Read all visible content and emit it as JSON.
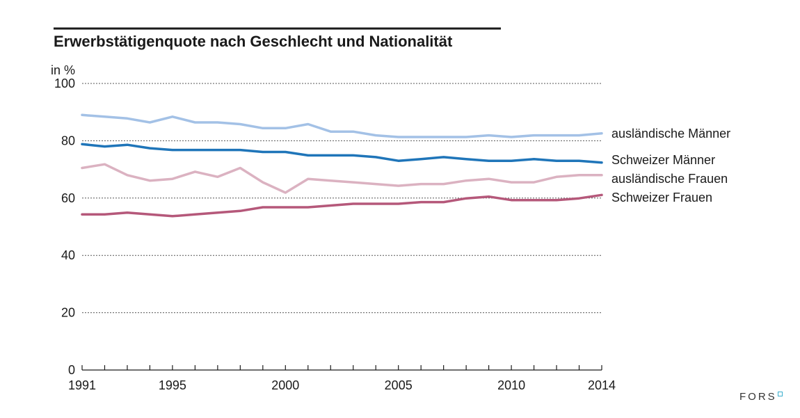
{
  "chart_data": {
    "type": "line",
    "title": "Erwerbstätigenquote nach Geschlecht und Nationalität",
    "ylabel": "in %",
    "xlabel": "",
    "ylim": [
      0,
      100
    ],
    "yticks": [
      0,
      20,
      40,
      60,
      80,
      100
    ],
    "xlim": [
      1991,
      2014
    ],
    "xtick_labels": [
      1991,
      1995,
      2000,
      2005,
      2010,
      2014
    ],
    "x": [
      1991,
      1992,
      1993,
      1994,
      1995,
      1996,
      1997,
      1998,
      1999,
      2000,
      2001,
      2002,
      2003,
      2004,
      2005,
      2006,
      2007,
      2008,
      2009,
      2010,
      2011,
      2012,
      2013,
      2014
    ],
    "series": [
      {
        "name": "ausländische Männer",
        "color": "#a3c1e6",
        "values": [
          89.0,
          88.4,
          87.8,
          86.4,
          88.4,
          86.4,
          86.4,
          85.8,
          84.4,
          84.4,
          85.8,
          83.2,
          83.2,
          81.9,
          81.3,
          81.3,
          81.3,
          81.3,
          81.9,
          81.3,
          81.9,
          81.9,
          81.9,
          82.6
        ]
      },
      {
        "name": "Schweizer Männer",
        "color": "#1f75b9",
        "values": [
          78.8,
          78.0,
          78.6,
          77.4,
          76.8,
          76.8,
          76.8,
          76.8,
          76.1,
          76.1,
          74.9,
          74.9,
          74.9,
          74.3,
          73.0,
          73.6,
          74.3,
          73.6,
          73.0,
          73.0,
          73.6,
          73.0,
          73.0,
          72.4
        ]
      },
      {
        "name": "ausländische Frauen",
        "color": "#dbb2c1",
        "values": [
          70.5,
          71.8,
          68.0,
          66.1,
          66.7,
          69.2,
          67.4,
          70.5,
          65.5,
          61.9,
          66.7,
          66.1,
          65.5,
          64.9,
          64.3,
          64.9,
          64.9,
          66.1,
          66.7,
          65.5,
          65.5,
          67.4,
          68.0,
          68.0
        ]
      },
      {
        "name": "Schweizer Frauen",
        "color": "#b5587a",
        "values": [
          54.3,
          54.3,
          54.9,
          54.3,
          53.7,
          54.3,
          54.9,
          55.5,
          56.8,
          56.8,
          56.8,
          57.4,
          58.0,
          58.0,
          58.0,
          58.6,
          58.6,
          59.9,
          60.5,
          59.3,
          59.3,
          59.3,
          59.9,
          61.1
        ]
      }
    ],
    "legend_position": "right"
  },
  "logo": {
    "text": "FORS",
    "accent_color": "#3aaecd"
  }
}
